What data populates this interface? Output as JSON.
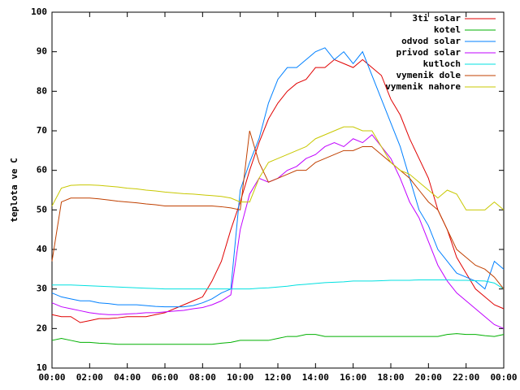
{
  "chart_data": {
    "type": "line",
    "y_label": "teplota ve C",
    "x": [
      0,
      0.5,
      1,
      1.5,
      2,
      2.5,
      3,
      3.5,
      4,
      4.5,
      5,
      5.5,
      6,
      6.5,
      7,
      7.5,
      8,
      8.5,
      9,
      9.5,
      10,
      10.5,
      11,
      11.5,
      12,
      12.5,
      13,
      13.5,
      14,
      14.5,
      15,
      15.5,
      16,
      16.5,
      17,
      17.5,
      18,
      18.5,
      19,
      19.5,
      20,
      20.5,
      21,
      21.5,
      22,
      22.5,
      23,
      23.5,
      24
    ],
    "xlim": [
      0,
      24
    ],
    "xticks": [
      {
        "value": 0,
        "label": "00:00"
      },
      {
        "value": 2,
        "label": "02:00"
      },
      {
        "value": 4,
        "label": "04:00"
      },
      {
        "value": 6,
        "label": "06:00"
      },
      {
        "value": 8,
        "label": "08:00"
      },
      {
        "value": 10,
        "label": "10:00"
      },
      {
        "value": 12,
        "label": "12:00"
      },
      {
        "value": 14,
        "label": "14:00"
      },
      {
        "value": 16,
        "label": "16:00"
      },
      {
        "value": 18,
        "label": "18:00"
      },
      {
        "value": 20,
        "label": "20:00"
      },
      {
        "value": 22,
        "label": "22:00"
      },
      {
        "value": 24,
        "label": "00:00"
      }
    ],
    "ylim": [
      10,
      100
    ],
    "yticks": [
      10,
      20,
      30,
      40,
      50,
      60,
      70,
      80,
      90,
      100
    ],
    "legend": "top-right",
    "series": [
      {
        "name": "3ti solar",
        "color": "#e00000",
        "values": [
          23.5,
          23,
          23,
          21.5,
          22,
          22.5,
          22.5,
          22.7,
          23,
          23,
          23,
          23.5,
          24,
          25,
          26,
          27,
          28,
          32,
          37,
          45,
          52,
          60,
          67,
          73,
          77,
          80,
          82,
          83,
          86,
          86,
          88,
          87,
          86,
          88,
          86,
          84,
          78,
          74,
          68,
          63,
          58,
          50,
          45,
          38,
          34,
          30,
          28,
          26,
          25
        ]
      },
      {
        "name": "kotel",
        "color": "#00b000",
        "values": [
          17,
          17.5,
          17,
          16.5,
          16.5,
          16.3,
          16.2,
          16,
          16,
          16,
          16,
          16,
          16,
          16,
          16,
          16,
          16,
          16,
          16.3,
          16.5,
          17,
          17,
          17,
          17,
          17.5,
          18,
          18,
          18.5,
          18.5,
          18,
          18,
          18,
          18,
          18,
          18,
          18,
          18,
          18,
          18,
          18,
          18,
          18,
          18.5,
          18.7,
          18.5,
          18.5,
          18.2,
          18,
          18.5
        ]
      },
      {
        "name": "odvod solar",
        "color": "#0080ff",
        "values": [
          29,
          28,
          27.5,
          27,
          27,
          26.5,
          26.3,
          26,
          26,
          26,
          25.8,
          25.6,
          25.5,
          25.5,
          25.5,
          25.8,
          26.5,
          27.5,
          29,
          30,
          55,
          62,
          68,
          77,
          83,
          86,
          86,
          88,
          90,
          91,
          88,
          90,
          87,
          90,
          84,
          78,
          72,
          66,
          58,
          50,
          46,
          40,
          37,
          34,
          33,
          32,
          30,
          37,
          35
        ]
      },
      {
        "name": "privod solar",
        "color": "#c000ff",
        "values": [
          26.5,
          25.5,
          25,
          24.5,
          24,
          23.7,
          23.5,
          23.5,
          23.7,
          23.8,
          24,
          24,
          24.2,
          24.4,
          24.6,
          25,
          25.3,
          26,
          27,
          28.5,
          45,
          54,
          58,
          57,
          58,
          60,
          61,
          63,
          64,
          66,
          67,
          66,
          68,
          67,
          69,
          66,
          63,
          58,
          52,
          48,
          42,
          36,
          32,
          29,
          27,
          25,
          23,
          21,
          20
        ]
      },
      {
        "name": "kutloch",
        "color": "#00e0e0",
        "values": [
          31,
          31,
          31,
          30.9,
          30.8,
          30.7,
          30.6,
          30.5,
          30.4,
          30.3,
          30.2,
          30.1,
          30,
          30,
          30,
          30,
          30,
          30,
          30,
          30,
          30,
          30,
          30.2,
          30.3,
          30.5,
          30.7,
          31,
          31.2,
          31.4,
          31.6,
          31.7,
          31.8,
          32,
          32,
          32,
          32.1,
          32.2,
          32.2,
          32.2,
          32.3,
          32.3,
          32.3,
          32.3,
          32.2,
          32.2,
          32.1,
          32,
          31.5,
          30
        ]
      },
      {
        "name": "vymenik dole",
        "color": "#c04000",
        "values": [
          37,
          52,
          53,
          53,
          53,
          52.8,
          52.5,
          52.2,
          52,
          51.8,
          51.5,
          51.3,
          51,
          51,
          51,
          51,
          51,
          51,
          50.8,
          50.5,
          50,
          70,
          62,
          57,
          58,
          59,
          60,
          60,
          62,
          63,
          64,
          65,
          65,
          66,
          66,
          64,
          62,
          60,
          58,
          55,
          52,
          50,
          45,
          40,
          38,
          36,
          35,
          33,
          30
        ]
      },
      {
        "name": "vymenik nahore",
        "color": "#c8c800",
        "values": [
          51,
          55.5,
          56.2,
          56.3,
          56.3,
          56.2,
          56,
          55.8,
          55.5,
          55.3,
          55,
          54.8,
          54.5,
          54.3,
          54.1,
          54,
          53.8,
          53.6,
          53.4,
          53,
          52,
          52,
          58,
          62,
          63,
          64,
          65,
          66,
          68,
          69,
          70,
          71,
          71,
          70,
          70,
          66,
          62,
          60,
          59,
          57,
          55,
          53,
          55,
          54,
          50,
          50,
          50,
          52,
          50
        ]
      }
    ]
  }
}
